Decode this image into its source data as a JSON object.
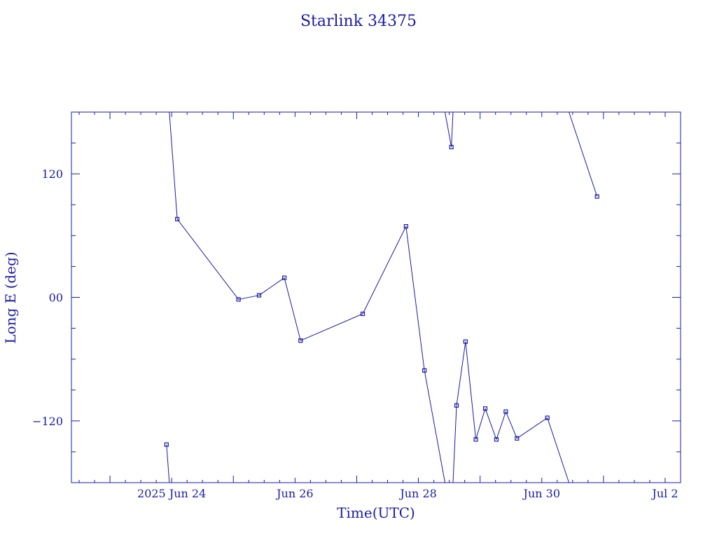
{
  "chart_data": {
    "type": "line",
    "title": "Starlink 34375",
    "xlabel": "Time(UTC)",
    "ylabel": "Long E (deg)",
    "color": "#1a1aa6",
    "grid": false,
    "x_axis": {
      "type": "date",
      "range": [
        "2025-06-22T09:00",
        "2025-07-02T06:00"
      ],
      "tick_labels": [
        {
          "label": "2025 Jun 24",
          "at": "2025-06-24T00:00"
        },
        {
          "label": "Jun 26",
          "at": "2025-06-26T00:00"
        },
        {
          "label": "Jun 28",
          "at": "2025-06-28T00:00"
        },
        {
          "label": "Jun 30",
          "at": "2025-06-30T00:00"
        },
        {
          "label": "Jul  2",
          "at": "2025-07-02T00:00"
        }
      ]
    },
    "y_axis": {
      "range": [
        -180,
        180
      ],
      "tick_labels": [
        {
          "label": "120",
          "value": 120
        },
        {
          "label": "00",
          "value": 0
        },
        {
          "label": "−120",
          "value": -120
        }
      ]
    },
    "series": [
      {
        "points": [
          {
            "t": "2025-06-23T22:00",
            "lon": -143
          },
          {
            "t": "2025-06-24T02:10",
            "lon": 76
          },
          {
            "t": "2025-06-25T02:00",
            "lon": -2
          },
          {
            "t": "2025-06-25T10:00",
            "lon": 2
          },
          {
            "t": "2025-06-25T19:50",
            "lon": 19
          },
          {
            "t": "2025-06-26T02:10",
            "lon": -42
          },
          {
            "t": "2025-06-27T02:20",
            "lon": -16
          },
          {
            "t": "2025-06-27T19:10",
            "lon": 69
          },
          {
            "t": "2025-06-28T02:20",
            "lon": -71
          },
          {
            "t": "2025-06-28T12:50",
            "lon": 146
          },
          {
            "t": "2025-06-28T14:50",
            "lon": -105
          },
          {
            "t": "2025-06-28T18:20",
            "lon": -43
          },
          {
            "t": "2025-06-28T22:20",
            "lon": -138
          },
          {
            "t": "2025-06-29T02:00",
            "lon": -108
          },
          {
            "t": "2025-06-29T06:20",
            "lon": -138
          },
          {
            "t": "2025-06-29T10:00",
            "lon": -111
          },
          {
            "t": "2025-06-29T14:20",
            "lon": -137
          },
          {
            "t": "2025-06-30T02:10",
            "lon": -117
          },
          {
            "t": "2025-06-30T21:30",
            "lon": 98
          }
        ]
      }
    ]
  }
}
